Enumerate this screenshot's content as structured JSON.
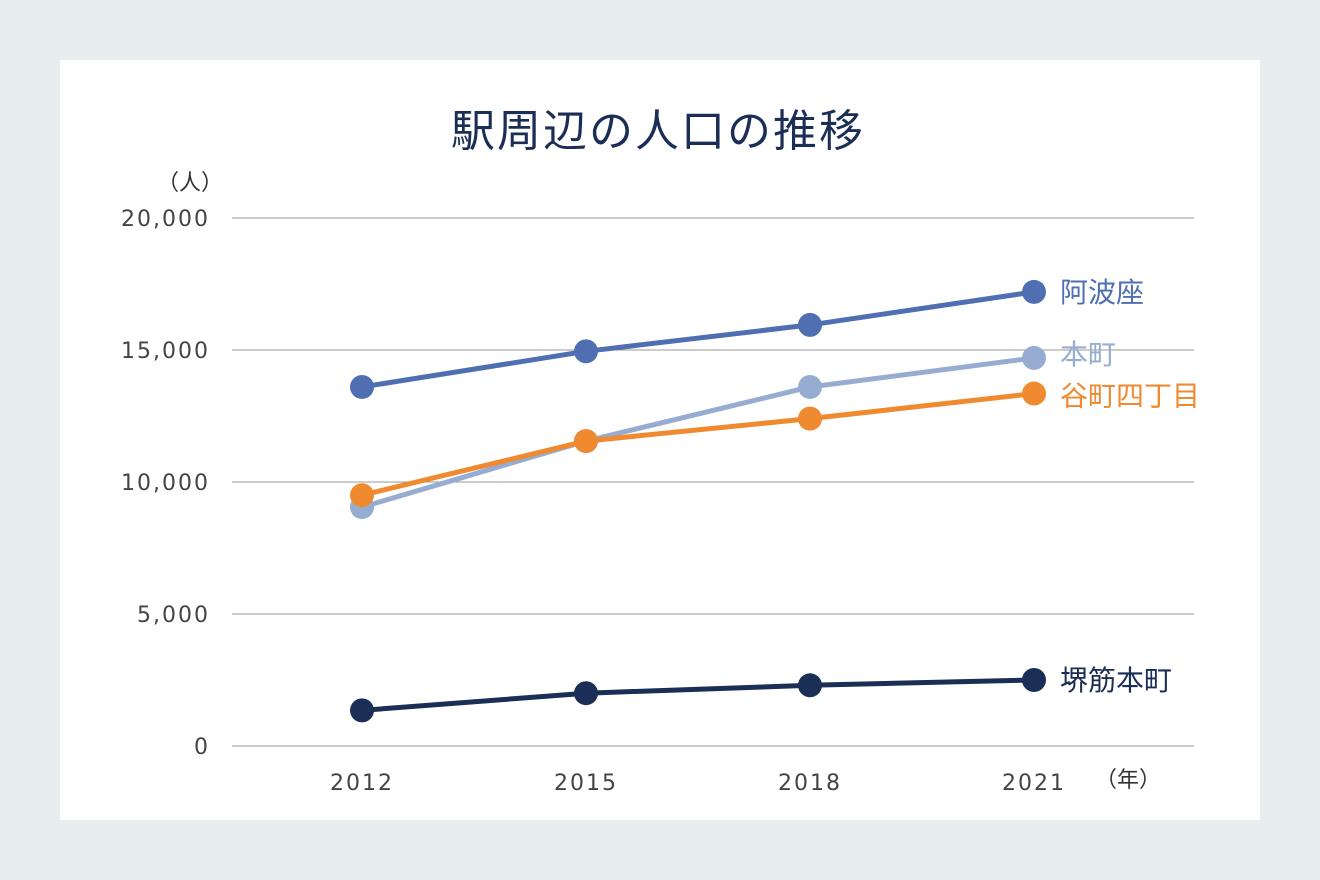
{
  "chart_data": {
    "type": "line",
    "title": "駅周辺の人口の推移",
    "ylabel": "（人）",
    "xlabel": "（年）",
    "x": [
      "2012",
      "2015",
      "2018",
      "2021"
    ],
    "ylim": [
      0,
      20000
    ],
    "yticks": [
      0,
      5000,
      10000,
      15000,
      20000
    ],
    "ytick_labels": [
      "0",
      "5,000",
      "10,000",
      "15,000",
      "20,000"
    ],
    "grid": true,
    "legend": "end-of-line labels",
    "series": [
      {
        "name": "阿波座",
        "color": "#4f6fb2",
        "values": [
          13600,
          14950,
          15950,
          17200
        ]
      },
      {
        "name": "本町",
        "color": "#97acd1",
        "values": [
          9050,
          11550,
          13600,
          14700
        ]
      },
      {
        "name": "谷町四丁目",
        "color": "#ef8a30",
        "values": [
          9500,
          11550,
          12400,
          13350
        ]
      },
      {
        "name": "堺筋本町",
        "color": "#1b2e55",
        "values": [
          1350,
          2000,
          2300,
          2500
        ]
      }
    ]
  }
}
